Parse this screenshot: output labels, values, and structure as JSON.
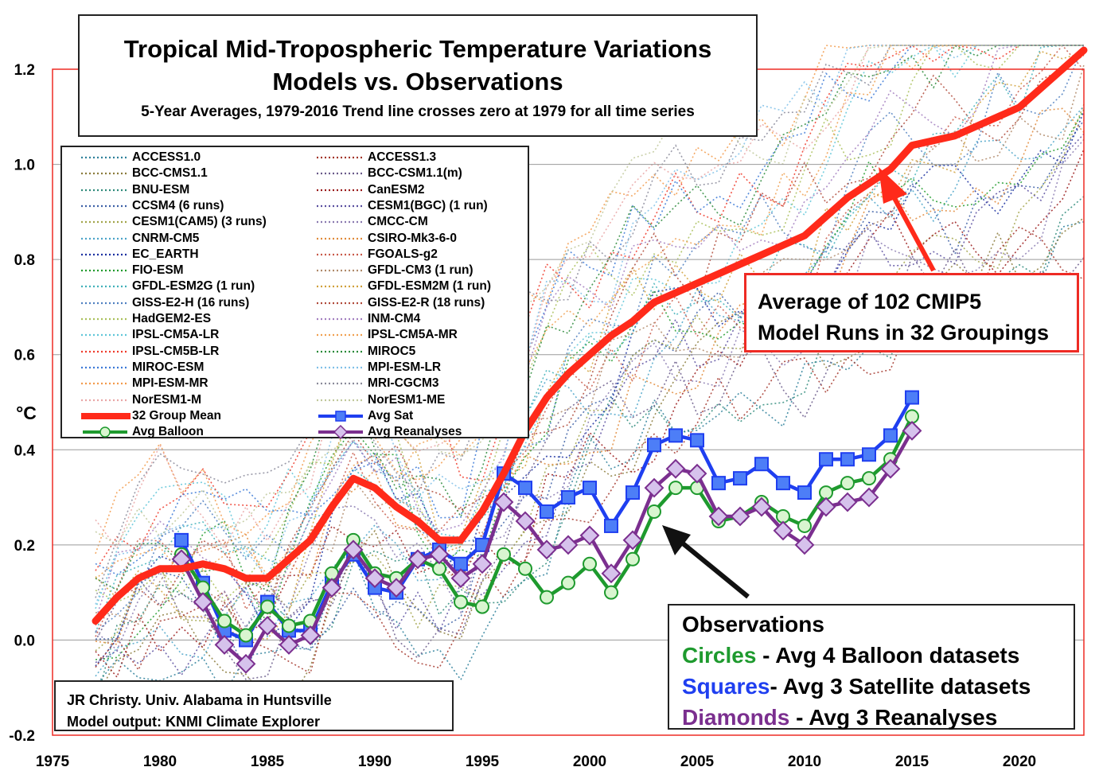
{
  "header": {
    "title_line1": "Tropical Mid-Tropospheric Temperature Variations",
    "title_line2": "Models vs. Observations",
    "subtitle": "5-Year Averages, 1979-2016 Trend line crosses zero at 1979 for all time series"
  },
  "annotations": {
    "avg_line1": "Average of 102 CMIP5",
    "avg_line2": "Model Runs in 32 Groupings",
    "obs_title": "Observations",
    "obs_circles_word": "Circles",
    "obs_circles_rest": " - Avg 4 Balloon datasets",
    "obs_squares_word": "Squares",
    "obs_squares_rest": "- Avg 3 Satellite datasets",
    "obs_diamonds_word": "Diamonds",
    "obs_diamonds_rest": " - Avg 3 Reanalyses",
    "credit_line1": "JR Christy. Univ. Alabama in Huntsville",
    "credit_line2": "Model output: KNMI Climate Explorer"
  },
  "colors": {
    "mean": "#ff2a1a",
    "sat": "#1f3ff0",
    "balloon": "#1e9a2e",
    "balloon_fill": "#d9f5d0",
    "reanalyses": "#7b2f8f",
    "reanalyses_fill": "#d6c2ec",
    "sat_fill": "#4d7ef7",
    "plot_border": "#ee2b24",
    "grid": "#9a9a9a"
  },
  "legend": {
    "models_left": [
      {
        "name": "ACCESS1.0",
        "color": "#2c7f9a"
      },
      {
        "name": "BCC-CMS1.1",
        "color": "#8a7a3a"
      },
      {
        "name": "BNU-ESM",
        "color": "#2d8a7a"
      },
      {
        "name": "CCSM4 (6 runs)",
        "color": "#3c5fa6"
      },
      {
        "name": "CESM1(CAM5) (3 runs)",
        "color": "#a2a44a"
      },
      {
        "name": "CNRM-CM5",
        "color": "#4aa3c8"
      },
      {
        "name": "EC_EARTH",
        "color": "#1a2fa0"
      },
      {
        "name": "FIO-ESM",
        "color": "#1f9a2a"
      },
      {
        "name": "GFDL-ESM2G (1 run)",
        "color": "#3fb0b8"
      },
      {
        "name": "GISS-E2-H (16 runs)",
        "color": "#4f7fc0"
      },
      {
        "name": "HadGEM2-ES",
        "color": "#a9c05a"
      },
      {
        "name": "IPSL-CM5A-LR",
        "color": "#5fc6d8"
      },
      {
        "name": "IPSL-CM5B-LR",
        "color": "#ee3a2a"
      },
      {
        "name": "MIROC-ESM",
        "color": "#3a78d6"
      },
      {
        "name": "MPI-ESM-MR",
        "color": "#f29a4a"
      },
      {
        "name": "NorESM1-M",
        "color": "#e9a6a6"
      }
    ],
    "models_right": [
      {
        "name": "ACCESS1.3",
        "color": "#a3352a"
      },
      {
        "name": "BCC-CSM1.1(m)",
        "color": "#6a5a8a"
      },
      {
        "name": "CanESM2",
        "color": "#9a1a1a"
      },
      {
        "name": "CESM1(BGC) (1 run)",
        "color": "#5a4fa0"
      },
      {
        "name": "CMCC-CM",
        "color": "#8a7ab0"
      },
      {
        "name": "CSIRO-Mk3-6-0",
        "color": "#e08a3a"
      },
      {
        "name": "FGOALS-g2",
        "color": "#c85a4a"
      },
      {
        "name": "GFDL-CM3 (1 run)",
        "color": "#b08a6a"
      },
      {
        "name": "GFDL-ESM2M (1 run)",
        "color": "#d0a03a"
      },
      {
        "name": "GISS-E2-R (18 runs)",
        "color": "#b04a3a"
      },
      {
        "name": "INM-CM4",
        "color": "#a37fc0"
      },
      {
        "name": "IPSL-CM5A-MR",
        "color": "#f0a050"
      },
      {
        "name": "MIROC5",
        "color": "#2a8a3a"
      },
      {
        "name": "MPI-ESM-LR",
        "color": "#7fc0e8"
      },
      {
        "name": "MRI-CGCM3",
        "color": "#8a8a9a"
      },
      {
        "name": "NorESM1-ME",
        "color": "#c0c89a"
      }
    ],
    "mean_label": "32 Group Mean",
    "balloon_label": "Avg Balloon",
    "sat_label": "Avg Sat",
    "reanalyses_label": "Avg Reanalyses"
  },
  "chart_data": {
    "type": "line",
    "title": "Tropical Mid-Tropospheric Temperature Variations",
    "ylabel": "°C",
    "xlim": [
      1975,
      2023
    ],
    "ylim": [
      -0.2,
      1.2
    ],
    "x_ticks": [
      1975,
      1980,
      1985,
      1990,
      1995,
      2000,
      2005,
      2010,
      2015,
      2020
    ],
    "y_ticks": [
      -0.2,
      0.0,
      0.2,
      0.4,
      0.6,
      0.8,
      1.0,
      1.2
    ],
    "y_tick_labels": [
      "-0.2",
      "0.0",
      "0.2",
      "0.4",
      "0.6",
      "0.8",
      "1.0",
      "1.2"
    ],
    "grid": true,
    "series": [
      {
        "name": "32 Group Mean",
        "x": [
          1977,
          1978,
          1979,
          1980,
          1981,
          1982,
          1983,
          1984,
          1985,
          1986,
          1987,
          1988,
          1989,
          1990,
          1991,
          1992,
          1993,
          1994,
          1995,
          1996,
          1997,
          1998,
          1999,
          2000,
          2001,
          2002,
          2003,
          2004,
          2005,
          2006,
          2007,
          2008,
          2009,
          2010,
          2011,
          2012,
          2013,
          2014,
          2015,
          2016,
          2017,
          2018,
          2019,
          2020,
          2021,
          2022,
          2023
        ],
        "y": [
          0.04,
          0.09,
          0.13,
          0.15,
          0.15,
          0.16,
          0.15,
          0.13,
          0.13,
          0.17,
          0.21,
          0.28,
          0.34,
          0.32,
          0.28,
          0.25,
          0.21,
          0.21,
          0.27,
          0.35,
          0.44,
          0.51,
          0.56,
          0.6,
          0.64,
          0.67,
          0.71,
          0.73,
          0.75,
          0.77,
          0.79,
          0.81,
          0.83,
          0.85,
          0.89,
          0.93,
          0.96,
          0.99,
          1.04,
          1.05,
          1.06,
          1.08,
          1.1,
          1.12,
          1.16,
          1.2,
          1.24
        ]
      },
      {
        "name": "Avg Sat",
        "x": [
          1981,
          1982,
          1983,
          1984,
          1985,
          1986,
          1987,
          1988,
          1989,
          1990,
          1991,
          1992,
          1993,
          1994,
          1995,
          1996,
          1997,
          1998,
          1999,
          2000,
          2001,
          2002,
          2003,
          2004,
          2005,
          2006,
          2007,
          2008,
          2009,
          2010,
          2011,
          2012,
          2013,
          2014,
          2015
        ],
        "y": [
          0.21,
          0.12,
          0.02,
          0.0,
          0.08,
          0.02,
          0.02,
          0.12,
          0.18,
          0.11,
          0.1,
          0.17,
          0.19,
          0.16,
          0.2,
          0.35,
          0.32,
          0.27,
          0.3,
          0.32,
          0.24,
          0.31,
          0.41,
          0.43,
          0.42,
          0.33,
          0.34,
          0.37,
          0.33,
          0.31,
          0.38,
          0.38,
          0.39,
          0.43,
          0.51
        ]
      },
      {
        "name": "Avg Balloon",
        "x": [
          1981,
          1982,
          1983,
          1984,
          1985,
          1986,
          1987,
          1988,
          1989,
          1990,
          1991,
          1992,
          1993,
          1994,
          1995,
          1996,
          1997,
          1998,
          1999,
          2000,
          2001,
          2002,
          2003,
          2004,
          2005,
          2006,
          2007,
          2008,
          2009,
          2010,
          2011,
          2012,
          2013,
          2014,
          2015
        ],
        "y": [
          0.18,
          0.11,
          0.04,
          0.01,
          0.07,
          0.03,
          0.04,
          0.14,
          0.21,
          0.14,
          0.13,
          0.17,
          0.15,
          0.08,
          0.07,
          0.18,
          0.15,
          0.09,
          0.12,
          0.16,
          0.1,
          0.17,
          0.27,
          0.32,
          0.32,
          0.25,
          0.26,
          0.29,
          0.26,
          0.24,
          0.31,
          0.33,
          0.34,
          0.38,
          0.47
        ]
      },
      {
        "name": "Avg Reanalyses",
        "x": [
          1981,
          1982,
          1983,
          1984,
          1985,
          1986,
          1987,
          1988,
          1989,
          1990,
          1991,
          1992,
          1993,
          1994,
          1995,
          1996,
          1997,
          1998,
          1999,
          2000,
          2001,
          2002,
          2003,
          2004,
          2005,
          2006,
          2007,
          2008,
          2009,
          2010,
          2011,
          2012,
          2013,
          2014,
          2015
        ],
        "y": [
          0.17,
          0.08,
          -0.01,
          -0.05,
          0.03,
          -0.01,
          0.01,
          0.11,
          0.19,
          0.13,
          0.11,
          0.17,
          0.18,
          0.13,
          0.16,
          0.29,
          0.25,
          0.19,
          0.2,
          0.22,
          0.14,
          0.21,
          0.32,
          0.36,
          0.35,
          0.26,
          0.26,
          0.28,
          0.23,
          0.2,
          0.28,
          0.29,
          0.3,
          0.36,
          0.44
        ]
      }
    ]
  }
}
